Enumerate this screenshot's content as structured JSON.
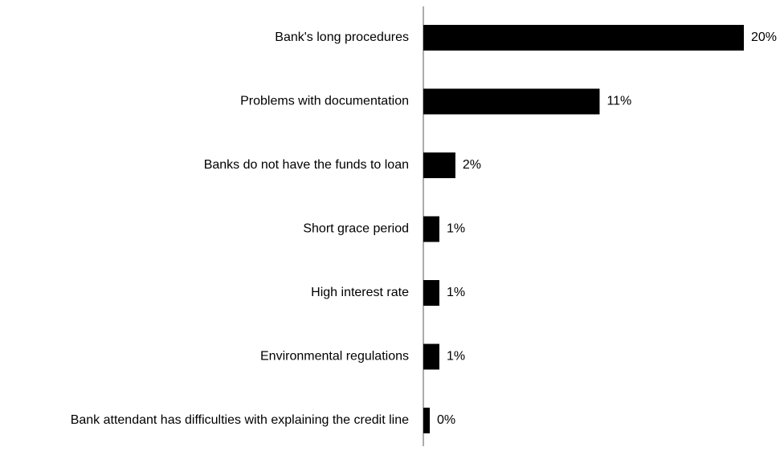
{
  "chart_data": {
    "type": "bar",
    "orientation": "horizontal",
    "categories": [
      "Bank's long procedures",
      "Problems with documentation",
      "Banks do not have the funds to loan",
      "Short grace period",
      "High interest rate",
      "Environmental regulations",
      "Bank attendant has difficulties with explaining the credit line"
    ],
    "values": [
      20,
      11,
      2,
      1,
      1,
      1,
      0
    ],
    "value_labels": [
      "20%",
      "11%",
      "2%",
      "1%",
      "1%",
      "1%",
      "0%"
    ],
    "unit": "%",
    "xlim": [
      0,
      20
    ],
    "grid": false,
    "legend": "none",
    "bar_color": "#000000",
    "axis_color": "#808080"
  }
}
